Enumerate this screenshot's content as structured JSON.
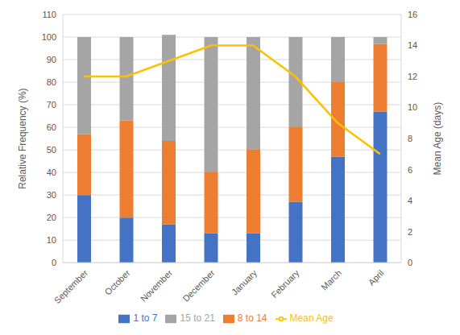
{
  "chart_data": {
    "type": "bar",
    "stacked": true,
    "grid": true,
    "legend": "bottom",
    "categories": [
      "September",
      "October",
      "November",
      "December",
      "January",
      "February",
      "March",
      "April"
    ],
    "ylabel": "Relative Frequency (%)",
    "y2label": "Mean Age (days)",
    "ylim": [
      0,
      110
    ],
    "yticks": [
      0,
      10,
      20,
      30,
      40,
      50,
      60,
      70,
      80,
      90,
      100,
      110
    ],
    "y2lim": [
      0,
      16
    ],
    "y2ticks": [
      0,
      2,
      4,
      6,
      8,
      10,
      12,
      14,
      16
    ],
    "series": [
      {
        "name": "1 to 7",
        "type": "bar",
        "color": "#4472C4",
        "values": [
          30,
          20,
          17,
          13,
          13,
          27,
          47,
          67
        ]
      },
      {
        "name": "8 to 14",
        "type": "bar",
        "color": "#ED7D31",
        "values": [
          27,
          43,
          37,
          27,
          37,
          33,
          33,
          30
        ]
      },
      {
        "name": "15 to 21",
        "type": "bar",
        "color": "#A5A5A5",
        "values": [
          43,
          37,
          47,
          60,
          50,
          40,
          20,
          3
        ]
      },
      {
        "name": "Mean Age",
        "type": "line",
        "axis": "y2",
        "color": "#FFC000",
        "values": [
          12,
          12,
          13,
          14,
          14,
          12,
          9,
          7
        ]
      }
    ]
  }
}
